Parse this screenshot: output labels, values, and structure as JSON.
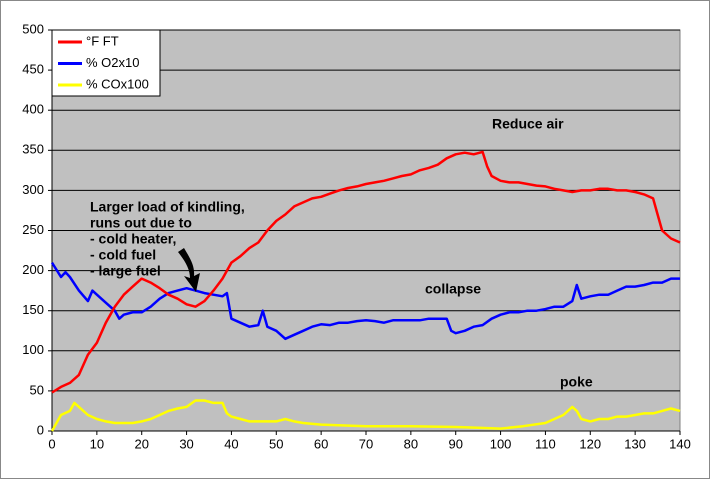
{
  "chart_data": {
    "type": "line",
    "xlim": [
      0,
      140
    ],
    "xticks": [
      0,
      10,
      20,
      30,
      40,
      50,
      60,
      70,
      80,
      90,
      100,
      110,
      120,
      130,
      140
    ],
    "ylim": [
      0,
      500
    ],
    "yticks": [
      0,
      50,
      100,
      150,
      200,
      250,
      300,
      350,
      400,
      450,
      500
    ],
    "grid": true,
    "legend": "top-left",
    "annotations": [
      [
        "Larger load of kindling,",
        "runs out due to",
        "- cold heater,",
        "- cold fuel",
        "- large fuel"
      ],
      [
        "Reduce air"
      ],
      [
        "collapse"
      ],
      [
        "poke"
      ]
    ],
    "series": [
      {
        "name": "°F FT",
        "color": "#ff0000",
        "x": [
          0,
          2,
          4,
          6,
          8,
          10,
          12,
          14,
          16,
          18,
          20,
          22,
          24,
          26,
          28,
          30,
          32,
          34,
          36,
          38,
          40,
          42,
          44,
          46,
          48,
          50,
          52,
          54,
          56,
          58,
          60,
          62,
          64,
          66,
          68,
          70,
          72,
          74,
          76,
          78,
          80,
          82,
          84,
          86,
          88,
          90,
          92,
          94,
          96,
          97,
          98,
          100,
          102,
          104,
          106,
          108,
          110,
          112,
          114,
          116,
          118,
          120,
          122,
          124,
          126,
          128,
          130,
          132,
          134,
          135,
          136,
          138,
          140
        ],
        "values": [
          48,
          55,
          60,
          70,
          95,
          110,
          135,
          155,
          170,
          180,
          190,
          185,
          178,
          170,
          165,
          158,
          155,
          162,
          175,
          190,
          210,
          218,
          228,
          235,
          250,
          262,
          270,
          280,
          285,
          290,
          292,
          296,
          300,
          303,
          305,
          308,
          310,
          312,
          315,
          318,
          320,
          325,
          328,
          332,
          340,
          345,
          347,
          345,
          348,
          330,
          318,
          312,
          310,
          310,
          308,
          306,
          305,
          302,
          300,
          298,
          300,
          300,
          302,
          302,
          300,
          300,
          298,
          295,
          290,
          270,
          250,
          240,
          235
        ]
      },
      {
        "name": "% O2x10",
        "color": "#0000ff",
        "x": [
          0,
          2,
          3,
          4,
          6,
          8,
          9,
          10,
          12,
          14,
          15,
          16,
          18,
          20,
          22,
          24,
          26,
          28,
          30,
          32,
          34,
          36,
          38,
          39,
          40,
          42,
          44,
          46,
          47,
          48,
          50,
          52,
          54,
          56,
          58,
          60,
          62,
          64,
          66,
          68,
          70,
          72,
          74,
          76,
          78,
          80,
          82,
          84,
          86,
          88,
          89,
          90,
          92,
          94,
          96,
          98,
          100,
          102,
          104,
          106,
          108,
          110,
          112,
          114,
          116,
          117,
          118,
          120,
          122,
          124,
          126,
          128,
          130,
          132,
          134,
          136,
          138,
          140
        ],
        "values": [
          210,
          192,
          198,
          192,
          175,
          162,
          175,
          170,
          160,
          150,
          140,
          145,
          148,
          148,
          155,
          165,
          172,
          175,
          178,
          175,
          172,
          170,
          168,
          172,
          140,
          135,
          130,
          132,
          150,
          130,
          125,
          115,
          120,
          125,
          130,
          133,
          132,
          135,
          135,
          137,
          138,
          137,
          135,
          138,
          138,
          138,
          138,
          140,
          140,
          140,
          125,
          122,
          125,
          130,
          132,
          140,
          145,
          148,
          148,
          150,
          150,
          152,
          155,
          155,
          162,
          182,
          165,
          168,
          170,
          170,
          175,
          180,
          180,
          182,
          185,
          185,
          190,
          190
        ]
      },
      {
        "name": "% COx100",
        "color": "#ffff00",
        "x": [
          0,
          2,
          4,
          5,
          6,
          8,
          10,
          12,
          14,
          16,
          18,
          20,
          22,
          24,
          26,
          28,
          30,
          32,
          34,
          36,
          38,
          39,
          40,
          42,
          44,
          46,
          48,
          50,
          52,
          54,
          56,
          60,
          70,
          80,
          90,
          95,
          100,
          105,
          110,
          112,
          114,
          116,
          117,
          118,
          120,
          122,
          124,
          126,
          128,
          130,
          132,
          134,
          136,
          138,
          140
        ],
        "values": [
          0,
          20,
          25,
          35,
          30,
          20,
          15,
          12,
          10,
          10,
          10,
          12,
          15,
          20,
          25,
          28,
          30,
          38,
          38,
          35,
          35,
          22,
          18,
          15,
          12,
          12,
          12,
          12,
          15,
          12,
          10,
          8,
          6,
          6,
          5,
          4,
          3,
          6,
          10,
          15,
          20,
          30,
          25,
          15,
          12,
          15,
          15,
          18,
          18,
          20,
          22,
          22,
          25,
          28,
          25
        ]
      }
    ]
  }
}
